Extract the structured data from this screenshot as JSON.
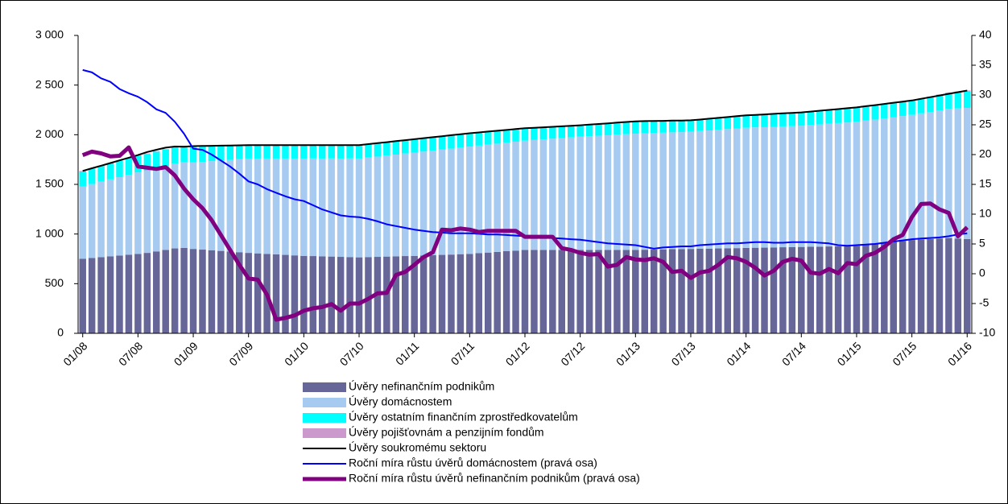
{
  "chart_data": {
    "type": "combo",
    "categories": [
      "01/08",
      null,
      null,
      null,
      null,
      null,
      "07/08",
      null,
      null,
      null,
      null,
      null,
      "01/09",
      null,
      null,
      null,
      null,
      null,
      "07/09",
      null,
      null,
      null,
      null,
      null,
      "01/10",
      null,
      null,
      null,
      null,
      null,
      "07/10",
      null,
      null,
      null,
      null,
      null,
      "01/11",
      null,
      null,
      null,
      null,
      null,
      "07/11",
      null,
      null,
      null,
      null,
      null,
      "01/12",
      null,
      null,
      null,
      null,
      null,
      "07/12",
      null,
      null,
      null,
      null,
      null,
      "01/13",
      null,
      null,
      null,
      null,
      null,
      "07/13",
      null,
      null,
      null,
      null,
      null,
      "01/14",
      null,
      null,
      null,
      null,
      null,
      "07/14",
      null,
      null,
      null,
      null,
      null,
      "01/15",
      null,
      null,
      null,
      null,
      null,
      "07/15",
      null,
      null,
      null,
      null,
      null,
      "01/16"
    ],
    "series": [
      {
        "name": "Úvěry nefinančním podnikům",
        "type": "bar",
        "color": "#666699",
        "values": [
          750,
          758,
          767,
          775,
          783,
          792,
          800,
          810,
          825,
          840,
          855,
          860,
          850,
          843,
          837,
          830,
          823,
          817,
          810,
          805,
          800,
          795,
          790,
          785,
          780,
          778,
          775,
          773,
          770,
          768,
          765,
          768,
          770,
          773,
          775,
          778,
          780,
          783,
          787,
          790,
          793,
          797,
          800,
          807,
          813,
          820,
          827,
          833,
          840,
          840,
          840,
          840,
          840,
          840,
          840,
          840,
          840,
          840,
          840,
          840,
          840,
          842,
          843,
          845,
          847,
          848,
          850,
          852,
          853,
          855,
          857,
          858,
          860,
          862,
          863,
          865,
          867,
          868,
          870,
          872,
          873,
          875,
          877,
          878,
          880,
          890,
          900,
          910,
          920,
          930,
          940,
          945,
          950,
          955,
          960,
          955,
          950
        ]
      },
      {
        "name": "Úvěry domácnostem",
        "type": "bar",
        "color": "#a6caf0",
        "values": [
          730,
          745,
          760,
          775,
          790,
          805,
          820,
          828,
          837,
          845,
          853,
          862,
          870,
          883,
          897,
          910,
          923,
          937,
          950,
          955,
          960,
          965,
          970,
          975,
          980,
          983,
          985,
          988,
          990,
          993,
          995,
          1003,
          1010,
          1018,
          1025,
          1033,
          1040,
          1047,
          1053,
          1060,
          1067,
          1073,
          1080,
          1083,
          1087,
          1090,
          1093,
          1097,
          1100,
          1107,
          1113,
          1120,
          1127,
          1133,
          1140,
          1145,
          1150,
          1155,
          1160,
          1165,
          1170,
          1172,
          1173,
          1175,
          1177,
          1178,
          1180,
          1185,
          1190,
          1195,
          1200,
          1205,
          1210,
          1212,
          1213,
          1215,
          1217,
          1218,
          1220,
          1225,
          1230,
          1235,
          1240,
          1245,
          1250,
          1252,
          1253,
          1255,
          1257,
          1258,
          1260,
          1270,
          1280,
          1290,
          1300,
          1310,
          1320
        ]
      },
      {
        "name": "Úvěry ostatním finančním zprostředkovatelům",
        "type": "bar",
        "color": "#00ffff",
        "values": [
          150,
          153,
          157,
          160,
          163,
          167,
          170,
          168,
          167,
          165,
          163,
          162,
          160,
          155,
          150,
          145,
          140,
          135,
          130,
          130,
          130,
          130,
          130,
          130,
          130,
          130,
          130,
          130,
          130,
          130,
          130,
          130,
          130,
          130,
          130,
          130,
          130,
          130,
          130,
          130,
          130,
          130,
          130,
          128,
          127,
          125,
          123,
          122,
          120,
          118,
          117,
          115,
          113,
          112,
          110,
          112,
          113,
          115,
          117,
          118,
          120,
          118,
          117,
          115,
          113,
          112,
          110,
          112,
          113,
          115,
          117,
          118,
          120,
          122,
          123,
          125,
          127,
          128,
          130,
          132,
          133,
          135,
          137,
          138,
          140,
          140,
          140,
          140,
          140,
          140,
          140,
          145,
          150,
          155,
          160,
          165,
          170
        ]
      },
      {
        "name": "Úvěry pojišťovnám a penzijním fondům",
        "type": "bar",
        "color": "#cc99cc",
        "values": [
          5,
          5,
          5,
          5,
          5,
          5,
          5,
          5,
          5,
          5,
          5,
          5,
          5,
          5,
          5,
          5,
          5,
          5,
          5,
          5,
          5,
          5,
          5,
          5,
          5,
          5,
          5,
          5,
          5,
          5,
          5,
          5,
          5,
          5,
          5,
          5,
          5,
          5,
          5,
          5,
          5,
          5,
          5,
          5,
          5,
          5,
          5,
          5,
          5,
          5,
          5,
          5,
          5,
          5,
          5,
          5,
          5,
          5,
          5,
          5,
          5,
          5,
          5,
          5,
          5,
          5,
          5,
          5,
          5,
          5,
          5,
          5,
          5,
          5,
          5,
          5,
          5,
          5,
          5,
          5,
          5,
          5,
          5,
          5,
          5,
          5,
          5,
          5,
          5,
          5,
          5,
          5,
          5,
          5,
          5,
          5,
          5
        ]
      },
      {
        "name": "Úvěry soukromému sektoru",
        "type": "line",
        "color": "#000000",
        "width": 2,
        "values": [
          1635,
          1662,
          1688,
          1715,
          1742,
          1768,
          1795,
          1826,
          1849,
          1870,
          1881,
          1879,
          1885,
          1887,
          1888,
          1890,
          1892,
          1893,
          1895,
          1895,
          1895,
          1895,
          1895,
          1895,
          1895,
          1895,
          1895,
          1895,
          1895,
          1895,
          1895,
          1905,
          1915,
          1925,
          1935,
          1945,
          1955,
          1965,
          1975,
          1985,
          1995,
          2005,
          2015,
          2023,
          2032,
          2040,
          2048,
          2057,
          2065,
          2070,
          2075,
          2080,
          2085,
          2090,
          2095,
          2102,
          2108,
          2115,
          2122,
          2128,
          2135,
          2137,
          2138,
          2140,
          2142,
          2143,
          2145,
          2153,
          2162,
          2170,
          2178,
          2187,
          2195,
          2200,
          2205,
          2210,
          2215,
          2220,
          2225,
          2233,
          2242,
          2250,
          2258,
          2267,
          2275,
          2287,
          2298,
          2310,
          2322,
          2333,
          2345,
          2362,
          2378,
          2395,
          2412,
          2428,
          2445
        ]
      },
      {
        "name": "Roční míra růstu úvěrů domácnostem (pravá osa)",
        "type": "line",
        "axis": "y2",
        "color": "#0000ff",
        "width": 2,
        "values": [
          34.2,
          33.8,
          32.8,
          32.2,
          31.0,
          30.3,
          29.7,
          28.8,
          27.6,
          27.0,
          25.5,
          23.5,
          21.0,
          20.8,
          20.0,
          19.0,
          18.0,
          16.8,
          15.5,
          15.0,
          14.2,
          13.6,
          13.0,
          12.5,
          12.2,
          11.5,
          10.8,
          10.3,
          9.8,
          9.6,
          9.5,
          9.2,
          8.8,
          8.3,
          8.0,
          7.7,
          7.4,
          7.2,
          7.0,
          6.9,
          6.8,
          6.8,
          6.8,
          6.7,
          6.6,
          6.6,
          6.5,
          6.4,
          6.3,
          6.2,
          6.1,
          6.0,
          5.9,
          5.8,
          5.7,
          5.5,
          5.3,
          5.1,
          5.0,
          4.9,
          4.8,
          4.5,
          4.2,
          4.4,
          4.5,
          4.6,
          4.6,
          4.8,
          4.9,
          5.0,
          5.1,
          5.1,
          5.2,
          5.3,
          5.3,
          5.2,
          5.2,
          5.3,
          5.3,
          5.3,
          5.2,
          5.1,
          4.8,
          4.7,
          4.8,
          4.9,
          5.0,
          5.2,
          5.4,
          5.6,
          5.8,
          5.9,
          6.0,
          6.1,
          6.3,
          6.6,
          6.8
        ]
      },
      {
        "name": "Roční míra růstu úvěrů nefinančním podnikům (pravá osa)",
        "type": "line",
        "axis": "y2",
        "color": "#800080",
        "width": 5,
        "values": [
          19.9,
          20.5,
          20.2,
          19.7,
          19.8,
          21.2,
          18.0,
          17.8,
          17.6,
          17.9,
          16.5,
          14.3,
          12.5,
          11.0,
          9.0,
          6.5,
          4.0,
          1.5,
          -0.8,
          -1.0,
          -3.5,
          -7.7,
          -7.4,
          -7.0,
          -6.2,
          -5.8,
          -5.6,
          -5.1,
          -6.2,
          -5.0,
          -5.0,
          -4.2,
          -3.3,
          -3.2,
          -0.2,
          0.3,
          1.5,
          2.8,
          3.6,
          7.4,
          7.3,
          7.6,
          7.4,
          7.0,
          7.2,
          7.2,
          7.2,
          7.2,
          6.2,
          6.2,
          6.2,
          6.2,
          4.3,
          4.0,
          3.5,
          3.2,
          3.3,
          1.2,
          1.5,
          2.8,
          2.4,
          2.3,
          2.6,
          2.0,
          0.3,
          0.5,
          -0.7,
          0.2,
          0.5,
          1.5,
          2.8,
          2.6,
          2.0,
          1.0,
          -0.3,
          0.5,
          2.0,
          2.5,
          2.2,
          0.2,
          0.0,
          0.8,
          0.1,
          1.8,
          1.6,
          3.0,
          3.5,
          4.5,
          5.8,
          6.5,
          9.5,
          11.7,
          11.8,
          10.8,
          10.2,
          6.3,
          7.8
        ]
      }
    ],
    "ylim": [
      0,
      3000
    ],
    "yticks": [
      0,
      500,
      {
        "value": 1000,
        "label": "1 000"
      },
      {
        "value": 1500,
        "label": "1 500"
      },
      {
        "value": 2000,
        "label": "2 000"
      },
      {
        "value": 2500,
        "label": "2 500"
      },
      {
        "value": 3000,
        "label": "3 000"
      }
    ],
    "y2lim": [
      -10,
      40
    ],
    "y2ticks": [
      -10,
      -5,
      0,
      5,
      10,
      15,
      20,
      25,
      30,
      35,
      40
    ],
    "grid": false
  }
}
